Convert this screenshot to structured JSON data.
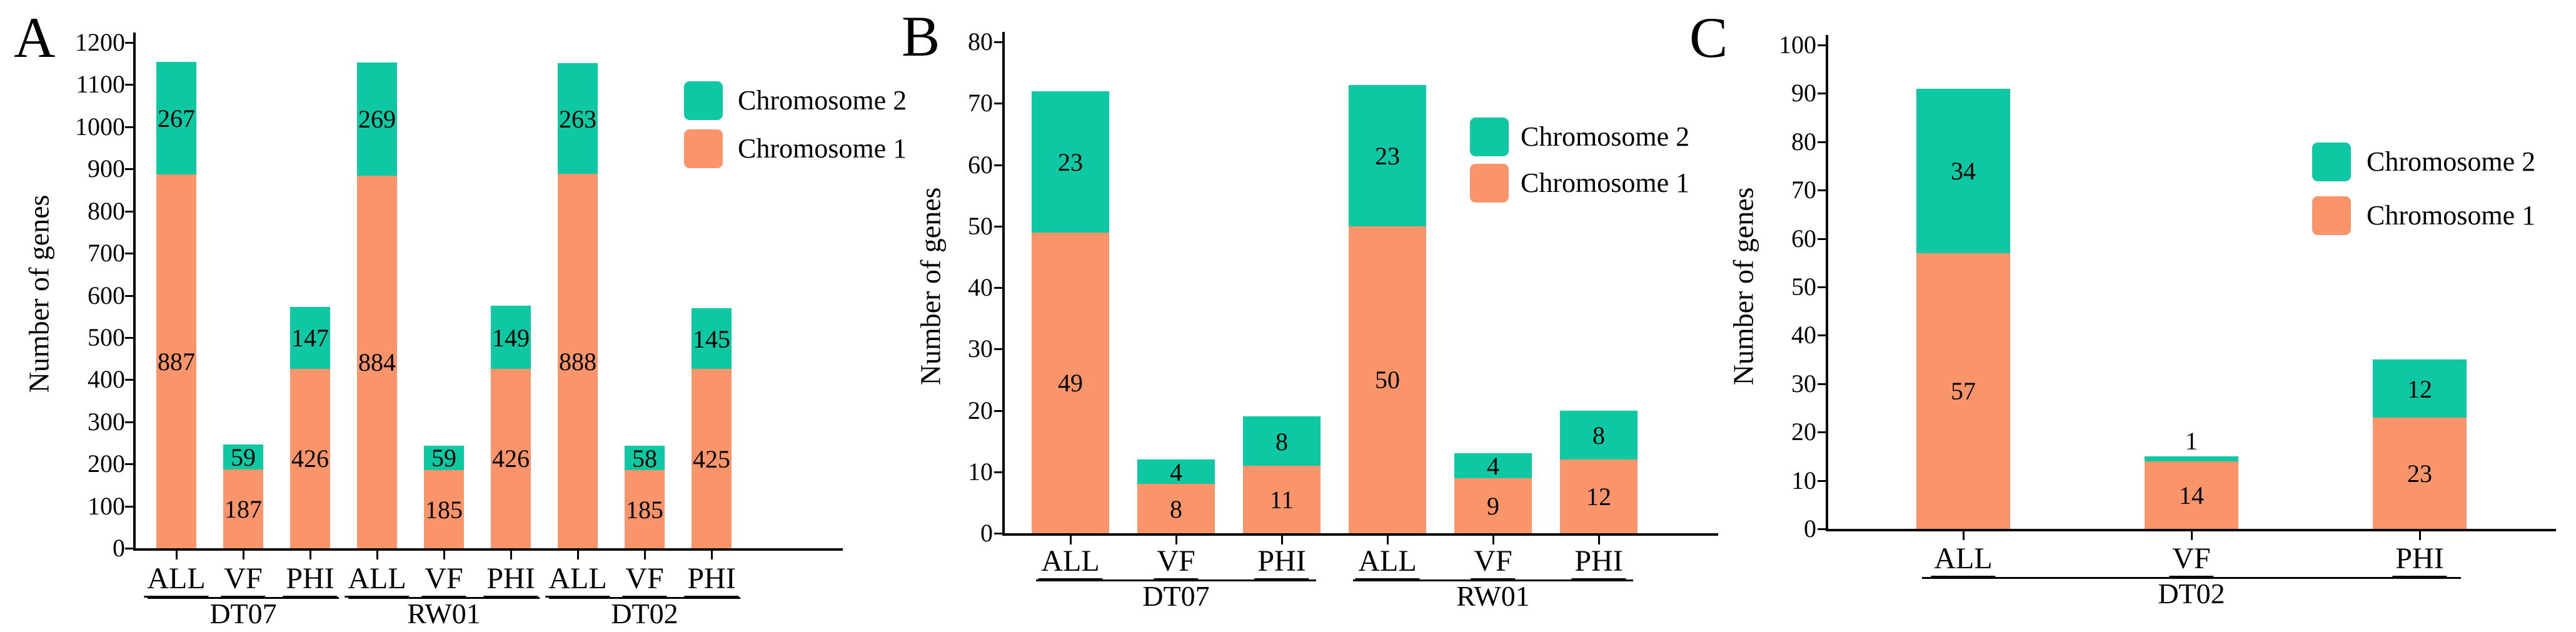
{
  "figure": {
    "background": "#ffffff",
    "text_color": "#000000",
    "axis_color": "#000000",
    "series_colors": {
      "chromosome1": "#F9946B",
      "chromosome2": "#0EC7A3"
    },
    "legend": [
      "Chromosome 2",
      "Chromosome 1"
    ]
  },
  "chart_data": [
    {
      "type": "bar",
      "stacked": true,
      "panel_label": "A",
      "title": "",
      "xlabel": "",
      "ylabel": "Number of genes",
      "ylim": [
        0,
        1200
      ],
      "ytick_step": 100,
      "yticks": [
        0,
        100,
        200,
        300,
        400,
        500,
        600,
        700,
        800,
        900,
        1000,
        1100,
        1200
      ],
      "grid": false,
      "legend": [
        "Chromosome 2",
        "Chromosome 1"
      ],
      "legend_position": "upper right inside",
      "groups": [
        {
          "label": "DT07",
          "bars": [
            {
              "category": "ALL",
              "chromosome1": 887,
              "chromosome2": 267
            },
            {
              "category": "VF",
              "chromosome1": 187,
              "chromosome2": 59
            },
            {
              "category": "PHI",
              "chromosome1": 426,
              "chromosome2": 147
            }
          ]
        },
        {
          "label": "RW01",
          "bars": [
            {
              "category": "ALL",
              "chromosome1": 884,
              "chromosome2": 269
            },
            {
              "category": "VF",
              "chromosome1": 185,
              "chromosome2": 59
            },
            {
              "category": "PHI",
              "chromosome1": 426,
              "chromosome2": 149
            }
          ]
        },
        {
          "label": "DT02",
          "bars": [
            {
              "category": "ALL",
              "chromosome1": 888,
              "chromosome2": 263
            },
            {
              "category": "VF",
              "chromosome1": 185,
              "chromosome2": 58
            },
            {
              "category": "PHI",
              "chromosome1": 425,
              "chromosome2": 145
            }
          ]
        }
      ]
    },
    {
      "type": "bar",
      "stacked": true,
      "panel_label": "B",
      "title": "",
      "xlabel": "",
      "ylabel": "Number of genes",
      "ylim": [
        0,
        80
      ],
      "ytick_step": 10,
      "yticks": [
        0,
        10,
        20,
        30,
        40,
        50,
        60,
        70,
        80
      ],
      "grid": false,
      "legend": [
        "Chromosome 2",
        "Chromosome 1"
      ],
      "legend_position": "upper right inside",
      "groups": [
        {
          "label": "DT07",
          "bars": [
            {
              "category": "ALL",
              "chromosome1": 49,
              "chromosome2": 23
            },
            {
              "category": "VF",
              "chromosome1": 8,
              "chromosome2": 4
            },
            {
              "category": "PHI",
              "chromosome1": 11,
              "chromosome2": 8
            }
          ]
        },
        {
          "label": "RW01",
          "bars": [
            {
              "category": "ALL",
              "chromosome1": 50,
              "chromosome2": 23
            },
            {
              "category": "VF",
              "chromosome1": 9,
              "chromosome2": 4
            },
            {
              "category": "PHI",
              "chromosome1": 12,
              "chromosome2": 8
            }
          ]
        }
      ]
    },
    {
      "type": "bar",
      "stacked": true,
      "panel_label": "C",
      "title": "",
      "xlabel": "",
      "ylabel": "Number of genes",
      "ylim": [
        0,
        100
      ],
      "ytick_step": 10,
      "yticks": [
        0,
        10,
        20,
        30,
        40,
        50,
        60,
        70,
        80,
        90,
        100
      ],
      "grid": false,
      "legend": [
        "Chromosome 2",
        "Chromosome 1"
      ],
      "legend_position": "upper right inside",
      "groups": [
        {
          "label": "DT02",
          "bars": [
            {
              "category": "ALL",
              "chromosome1": 57,
              "chromosome2": 34
            },
            {
              "category": "VF",
              "chromosome1": 14,
              "chromosome2": 1
            },
            {
              "category": "PHI",
              "chromosome1": 23,
              "chromosome2": 12
            }
          ]
        }
      ]
    }
  ]
}
